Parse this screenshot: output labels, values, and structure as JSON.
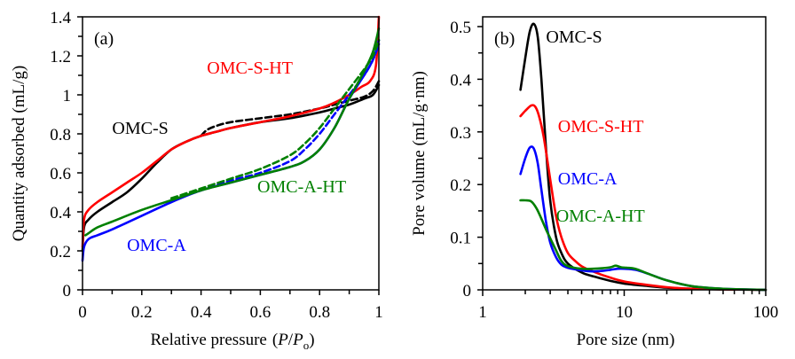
{
  "chart_data": [
    {
      "type": "line",
      "panel_label": "(a)",
      "title": "",
      "xlabel": "Relative pressure",
      "xlabel_italic": "(P/P",
      "xlabel_sub": "o",
      "xlabel_close": ")",
      "ylabel": "Quantity adsorbed (mL/g)",
      "xlim": [
        0,
        1
      ],
      "ylim": [
        0,
        1.4
      ],
      "xticks": [
        0,
        0.2,
        0.4,
        0.6,
        0.8,
        1
      ],
      "xtick_labels": [
        "0",
        "0.2",
        "0.4",
        "0.6",
        "0.8",
        "1"
      ],
      "yticks": [
        0,
        0.2,
        0.4,
        0.6,
        0.8,
        1,
        1.2,
        1.4
      ],
      "ytick_labels": [
        "0",
        "0.2",
        "0.4",
        "0.6",
        "0.8",
        "1",
        "1.2",
        "1.4"
      ],
      "grid": false,
      "legend": "none (direct labels)",
      "series": [
        {
          "name": "OMC-S adsorption",
          "color": "#000000",
          "style": "solid",
          "x": [
            0.0,
            0.005,
            0.02,
            0.05,
            0.1,
            0.15,
            0.2,
            0.25,
            0.3,
            0.35,
            0.4,
            0.45,
            0.5,
            0.6,
            0.7,
            0.8,
            0.85,
            0.9,
            0.95,
            0.98,
            1.0
          ],
          "y": [
            0.2,
            0.32,
            0.36,
            0.4,
            0.45,
            0.5,
            0.57,
            0.65,
            0.72,
            0.76,
            0.79,
            0.81,
            0.83,
            0.86,
            0.88,
            0.91,
            0.93,
            0.95,
            0.98,
            1.0,
            1.05
          ]
        },
        {
          "name": "OMC-S desorption",
          "color": "#000000",
          "style": "dashed",
          "x": [
            0.4,
            0.42,
            0.45,
            0.5,
            0.6,
            0.7,
            0.8,
            0.85,
            0.9,
            0.95,
            0.98,
            1.0
          ],
          "y": [
            0.79,
            0.82,
            0.84,
            0.86,
            0.88,
            0.9,
            0.93,
            0.95,
            0.97,
            0.99,
            1.02,
            1.07
          ]
        },
        {
          "name": "OMC-S-HT adsorption",
          "color": "#ff0000",
          "style": "solid",
          "x": [
            0.0,
            0.005,
            0.02,
            0.05,
            0.1,
            0.15,
            0.2,
            0.25,
            0.3,
            0.35,
            0.4,
            0.45,
            0.5,
            0.6,
            0.7,
            0.8,
            0.85,
            0.9,
            0.94,
            0.97,
            0.99,
            1.0
          ],
          "y": [
            0.22,
            0.36,
            0.41,
            0.45,
            0.5,
            0.55,
            0.6,
            0.66,
            0.72,
            0.76,
            0.79,
            0.81,
            0.83,
            0.86,
            0.89,
            0.93,
            0.96,
            1.0,
            1.04,
            1.07,
            1.15,
            1.4
          ]
        },
        {
          "name": "OMC-A adsorption",
          "color": "#0000ff",
          "style": "solid",
          "x": [
            0.0,
            0.005,
            0.02,
            0.05,
            0.1,
            0.2,
            0.3,
            0.4,
            0.5,
            0.6,
            0.7,
            0.75,
            0.8,
            0.85,
            0.9,
            0.95,
            0.98,
            1.0
          ],
          "y": [
            0.15,
            0.22,
            0.26,
            0.28,
            0.31,
            0.38,
            0.45,
            0.51,
            0.55,
            0.59,
            0.63,
            0.66,
            0.72,
            0.83,
            0.98,
            1.1,
            1.18,
            1.28
          ]
        },
        {
          "name": "OMC-A desorption",
          "color": "#0000ff",
          "style": "dashed",
          "x": [
            0.3,
            0.4,
            0.5,
            0.6,
            0.7,
            0.75,
            0.8,
            0.85,
            0.9,
            0.95,
            0.98,
            1.0
          ],
          "y": [
            0.46,
            0.51,
            0.56,
            0.6,
            0.66,
            0.72,
            0.8,
            0.9,
            1.0,
            1.1,
            1.18,
            1.26
          ]
        },
        {
          "name": "OMC-A-HT adsorption",
          "color": "#008000",
          "style": "solid",
          "x": [
            0.01,
            0.02,
            0.05,
            0.1,
            0.2,
            0.3,
            0.4,
            0.5,
            0.6,
            0.7,
            0.75,
            0.8,
            0.85,
            0.9,
            0.95,
            0.98,
            1.0
          ],
          "y": [
            0.28,
            0.29,
            0.32,
            0.35,
            0.41,
            0.46,
            0.51,
            0.55,
            0.59,
            0.63,
            0.66,
            0.72,
            0.83,
            0.98,
            1.12,
            1.22,
            1.34
          ]
        },
        {
          "name": "OMC-A-HT desorption",
          "color": "#008000",
          "style": "dashed",
          "x": [
            0.3,
            0.4,
            0.5,
            0.6,
            0.7,
            0.75,
            0.8,
            0.85,
            0.9,
            0.95,
            0.98,
            1.0
          ],
          "y": [
            0.47,
            0.52,
            0.57,
            0.62,
            0.69,
            0.75,
            0.83,
            0.93,
            1.03,
            1.13,
            1.2,
            1.28
          ]
        }
      ],
      "annotations": [
        {
          "text": "OMC-S",
          "color": "#000000",
          "x": 0.1,
          "y": 0.8
        },
        {
          "text": "OMC-S-HT",
          "color": "#ff0000",
          "x": 0.42,
          "y": 1.11
        },
        {
          "text": "OMC-A-HT",
          "color": "#008000",
          "x": 0.59,
          "y": 0.5
        },
        {
          "text": "OMC-A",
          "color": "#0000ff",
          "x": 0.15,
          "y": 0.2
        }
      ]
    },
    {
      "type": "line",
      "panel_label": "(b)",
      "title": "",
      "xlabel": "Pore size  (nm)",
      "ylabel": "Pore volume (mL/g·nm)",
      "xscale": "log",
      "xlim": [
        1,
        100
      ],
      "ylim": [
        0,
        0.52
      ],
      "xticks": [
        1,
        10,
        100
      ],
      "xtick_labels": [
        "1",
        "10",
        "100"
      ],
      "yticks": [
        0,
        0.1,
        0.2,
        0.3,
        0.4,
        0.5
      ],
      "ytick_labels": [
        "0",
        "0.1",
        "0.2",
        "0.3",
        "0.4",
        "0.5"
      ],
      "grid": false,
      "legend": "none (direct labels)",
      "series": [
        {
          "name": "OMC-S",
          "color": "#000000",
          "x": [
            1.85,
            2.0,
            2.15,
            2.3,
            2.45,
            2.6,
            2.8,
            3.0,
            3.3,
            3.6,
            4.0,
            5.0,
            6.0,
            8.0,
            10.0,
            15.0,
            20.0,
            30.0,
            50.0,
            100.0
          ],
          "y": [
            0.38,
            0.44,
            0.49,
            0.505,
            0.48,
            0.4,
            0.27,
            0.17,
            0.1,
            0.07,
            0.05,
            0.033,
            0.026,
            0.017,
            0.012,
            0.007,
            0.004,
            0.002,
            0.001,
            0.0
          ]
        },
        {
          "name": "OMC-S-HT",
          "color": "#ff0000",
          "x": [
            1.85,
            2.0,
            2.2,
            2.35,
            2.5,
            2.7,
            3.0,
            3.3,
            3.6,
            4.0,
            4.5,
            5.0,
            6.0,
            8.0,
            10.0,
            15.0,
            20.0,
            30.0,
            50.0,
            100.0
          ],
          "y": [
            0.33,
            0.34,
            0.35,
            0.348,
            0.33,
            0.29,
            0.21,
            0.14,
            0.1,
            0.07,
            0.055,
            0.045,
            0.035,
            0.023,
            0.016,
            0.009,
            0.005,
            0.002,
            0.001,
            0.0
          ]
        },
        {
          "name": "OMC-A",
          "color": "#0000ff",
          "x": [
            1.85,
            2.0,
            2.15,
            2.3,
            2.45,
            2.6,
            2.8,
            3.0,
            3.3,
            3.6,
            4.0,
            5.0,
            6.0,
            7.0,
            8.0,
            9.0,
            10.0,
            12.0,
            15.0,
            20.0,
            30.0,
            50.0,
            100.0
          ],
          "y": [
            0.22,
            0.25,
            0.27,
            0.268,
            0.24,
            0.19,
            0.13,
            0.09,
            0.062,
            0.048,
            0.042,
            0.037,
            0.035,
            0.036,
            0.038,
            0.04,
            0.04,
            0.038,
            0.03,
            0.018,
            0.007,
            0.002,
            0.0
          ]
        },
        {
          "name": "OMC-A-HT",
          "color": "#008000",
          "x": [
            1.85,
            2.0,
            2.2,
            2.4,
            2.6,
            2.8,
            3.0,
            3.3,
            3.6,
            4.0,
            5.0,
            6.0,
            7.0,
            8.0,
            8.7,
            9.5,
            10.5,
            12.0,
            15.0,
            20.0,
            30.0,
            50.0,
            100.0
          ],
          "y": [
            0.17,
            0.17,
            0.168,
            0.155,
            0.135,
            0.115,
            0.098,
            0.075,
            0.055,
            0.045,
            0.04,
            0.04,
            0.041,
            0.043,
            0.046,
            0.043,
            0.042,
            0.04,
            0.03,
            0.018,
            0.007,
            0.002,
            0.0
          ]
        }
      ],
      "annotations": [
        {
          "text": "OMC-S",
          "color": "#000000",
          "x": 2.8,
          "y": 0.47
        },
        {
          "text": "OMC-S-HT",
          "color": "#ff0000",
          "x": 3.4,
          "y": 0.3
        },
        {
          "text": "OMC-A",
          "color": "#0000ff",
          "x": 3.4,
          "y": 0.2
        },
        {
          "text": "OMC-A-HT",
          "color": "#008000",
          "x": 3.3,
          "y": 0.13
        }
      ]
    }
  ]
}
